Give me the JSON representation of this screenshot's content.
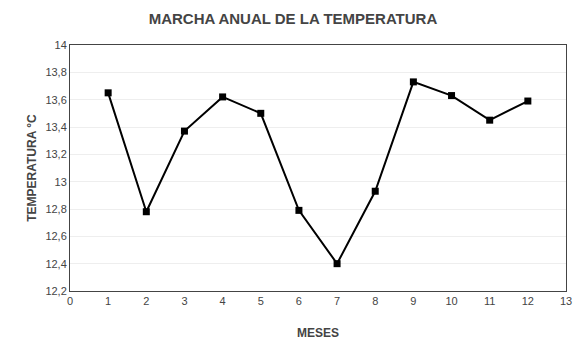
{
  "chart_data": {
    "type": "line",
    "title": "MARCHA ANUAL DE LA TEMPERATURA",
    "xlabel": "MESES",
    "ylabel": "TEMPERATURA °C",
    "x": [
      1,
      2,
      3,
      4,
      5,
      6,
      7,
      8,
      9,
      10,
      11,
      12
    ],
    "values": [
      13.65,
      12.78,
      13.37,
      13.62,
      13.5,
      12.79,
      12.4,
      12.93,
      13.73,
      13.63,
      13.45,
      13.59
    ],
    "color": "#000000",
    "marker": "square",
    "xlim": [
      0,
      13
    ],
    "ylim": [
      12.2,
      14.0
    ],
    "xticks": [
      0,
      1,
      2,
      3,
      4,
      5,
      6,
      7,
      8,
      9,
      10,
      11,
      12,
      13
    ],
    "yticks": [
      {
        "value": 12.2,
        "label": "12,2"
      },
      {
        "value": 12.4,
        "label": "12,4"
      },
      {
        "value": 12.6,
        "label": "12,6"
      },
      {
        "value": 12.8,
        "label": "12,8"
      },
      13,
      {
        "value": 13.2,
        "label": "13,2"
      },
      {
        "value": 13.4,
        "label": "13,4"
      },
      {
        "value": 13.6,
        "label": "13,6"
      },
      {
        "value": 13.8,
        "label": "13,8"
      },
      14
    ],
    "grid": "y"
  }
}
